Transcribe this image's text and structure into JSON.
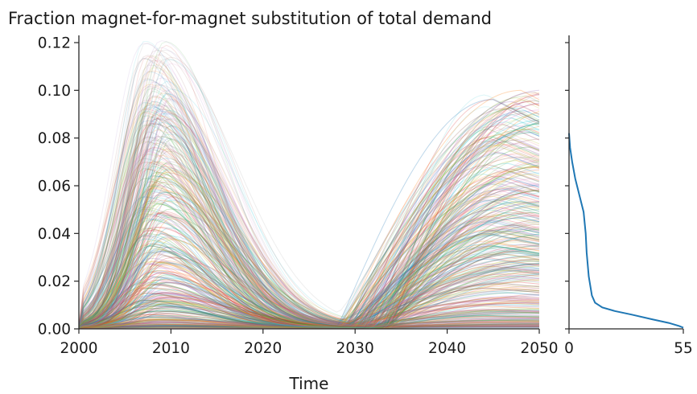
{
  "chart_data": [
    {
      "type": "line",
      "title": "Fraction magnet-for-magnet substitution of total demand",
      "xlabel": "Time",
      "ylabel": "",
      "xlim": [
        2000,
        2050
      ],
      "ylim": [
        0,
        0.125
      ],
      "x_ticks": [
        "2000",
        "2010",
        "2020",
        "2030",
        "2040",
        "2050"
      ],
      "y_ticks": [
        "0.00",
        "0.02",
        "0.04",
        "0.06",
        "0.08",
        "0.10",
        "0.12"
      ],
      "grid": false,
      "legend": "none",
      "description_of_series": "many overlapping simulation runs",
      "envelope": {
        "first_peak_year": 2008.5,
        "first_peak_max": 0.122,
        "trough_year": 2030,
        "trough_value": 0.005,
        "end_max": 0.105,
        "end_year": 2050
      }
    },
    {
      "type": "line",
      "xlabel": "",
      "x_ticks": [
        "0",
        "55"
      ],
      "xlim": [
        0,
        55
      ],
      "ylim": [
        0,
        0.125
      ],
      "series": [
        {
          "color": "#1f77b4",
          "points": [
            [
              0,
              0.082
            ],
            [
              0.5,
              0.076
            ],
            [
              1.5,
              0.07
            ],
            [
              3,
              0.063
            ],
            [
              5,
              0.056
            ],
            [
              7,
              0.049
            ],
            [
              8,
              0.04
            ],
            [
              8.5,
              0.032
            ],
            [
              9.5,
              0.022
            ],
            [
              11,
              0.014
            ],
            [
              12.5,
              0.011
            ],
            [
              16,
              0.009
            ],
            [
              22,
              0.0075
            ],
            [
              30,
              0.006
            ],
            [
              40,
              0.004
            ],
            [
              48,
              0.0025
            ],
            [
              53,
              0.0012
            ],
            [
              55,
              0.0005
            ]
          ]
        }
      ]
    }
  ]
}
